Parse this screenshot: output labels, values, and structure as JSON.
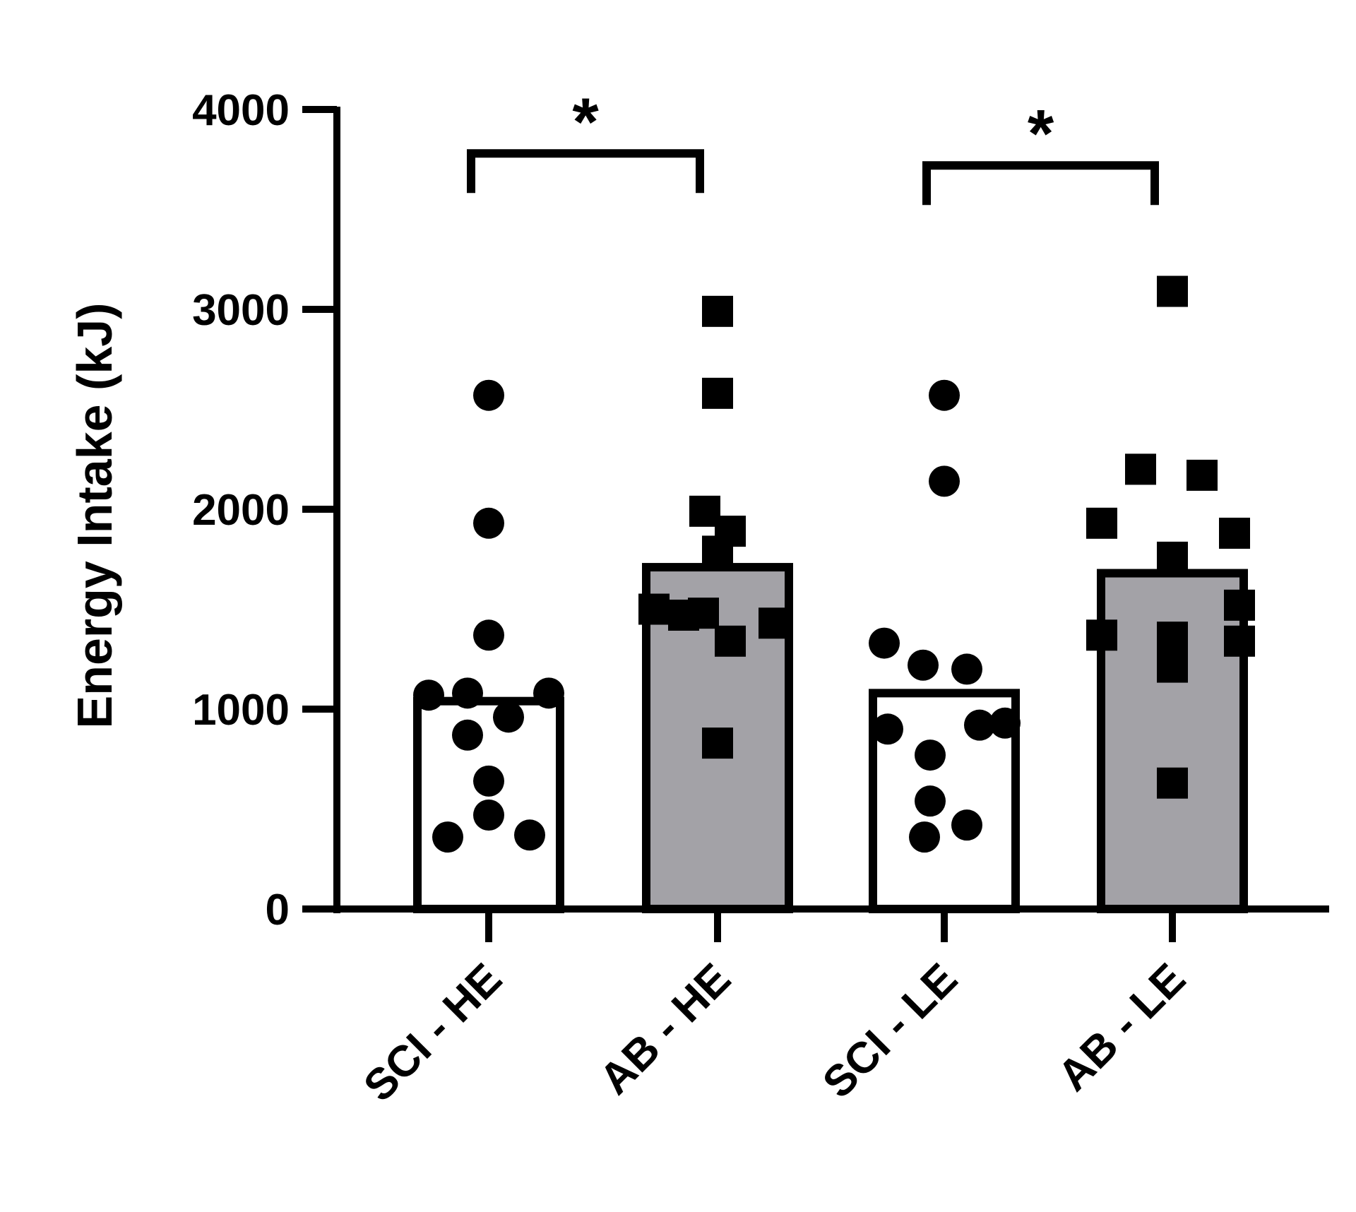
{
  "chart_data": {
    "type": "bar",
    "title": "",
    "xlabel": "",
    "ylabel": "Energy Intake (kJ)",
    "ylim": [
      0,
      4000
    ],
    "yticks": [
      0,
      1000,
      2000,
      3000,
      4000
    ],
    "categories": [
      "SCI - HE",
      "AB - HE",
      "SCI - LE",
      "AB - LE"
    ],
    "bar_colors": [
      "#ffffff",
      "#a3a2a7",
      "#ffffff",
      "#a3a2a7"
    ],
    "marker_shapes": [
      "circle",
      "square",
      "circle",
      "square"
    ],
    "means": [
      1040,
      1710,
      1080,
      1680
    ],
    "points": [
      [
        2570,
        1930,
        1370,
        1070,
        1080,
        1080,
        960,
        870,
        640,
        470,
        360,
        370
      ],
      [
        2990,
        2580,
        1990,
        1890,
        1790,
        1500,
        1470,
        1430,
        1340,
        1480,
        830
      ],
      [
        2570,
        2140,
        1330,
        1220,
        1200,
        900,
        930,
        920,
        770,
        540,
        420,
        360
      ],
      [
        3090,
        2200,
        2170,
        1930,
        1880,
        1760,
        1520,
        1370,
        1360,
        1340,
        1210,
        630
      ]
    ],
    "significance": [
      {
        "pair": [
          0,
          1
        ],
        "label": "*",
        "y": 3780
      },
      {
        "pair": [
          2,
          3
        ],
        "label": "*",
        "y": 3720
      }
    ]
  }
}
